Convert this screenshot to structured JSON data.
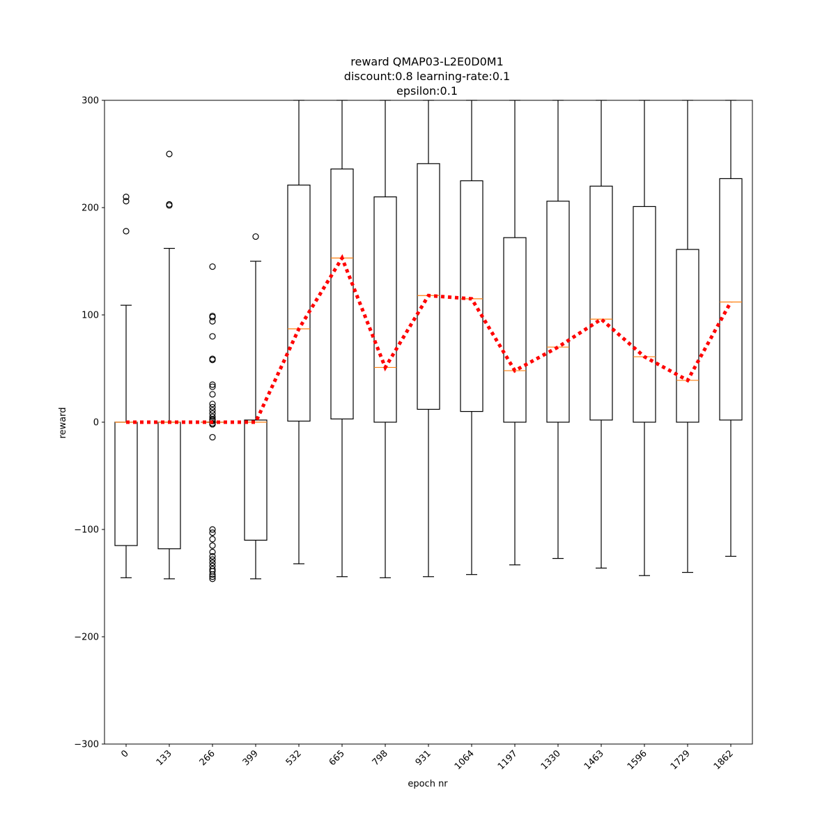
{
  "chart_data": {
    "type": "box",
    "title_lines": [
      "reward QMAP03-L2E0D0M1",
      "discount:0.8 learning-rate:0.1",
      "epsilon:0.1"
    ],
    "xlabel": "epoch nr",
    "ylabel": "reward",
    "ylim": [
      -300,
      300
    ],
    "y_ticks": [
      -300,
      -200,
      -100,
      0,
      100,
      200,
      300
    ],
    "y_tick_labels": [
      "−300",
      "−200",
      "−100",
      "0",
      "100",
      "200",
      "300"
    ],
    "categories": [
      "0",
      "133",
      "266",
      "399",
      "532",
      "665",
      "798",
      "931",
      "1064",
      "1197",
      "1330",
      "1463",
      "1596",
      "1729",
      "1862"
    ],
    "boxes": [
      {
        "q1": -115,
        "median": 0,
        "q3": 0,
        "whisker_low": -145,
        "whisker_high": 109,
        "fliers": [
          210,
          206,
          178
        ]
      },
      {
        "q1": -118,
        "median": 0,
        "q3": 0,
        "whisker_low": -146,
        "whisker_high": 162,
        "fliers": [
          250,
          203,
          202
        ]
      },
      {
        "q1": 0,
        "median": 0,
        "q3": 0,
        "whisker_low": 0,
        "whisker_high": 0,
        "fliers": [
          145,
          99,
          98,
          94,
          80,
          59,
          58,
          35,
          33,
          26,
          17,
          14,
          11,
          8,
          5,
          3,
          2,
          1,
          -1,
          -2,
          -14,
          -100,
          -103,
          -109,
          -115,
          -121,
          -125,
          -128,
          -131,
          -134,
          -137,
          -139,
          -142,
          -144,
          -146
        ]
      },
      {
        "q1": -110,
        "median": 0,
        "q3": 2,
        "whisker_low": -146,
        "whisker_high": 150,
        "fliers": [
          173
        ]
      },
      {
        "q1": 1,
        "median": 87,
        "q3": 221,
        "whisker_low": -132,
        "whisker_high": 300,
        "fliers": []
      },
      {
        "q1": 3,
        "median": 153,
        "q3": 236,
        "whisker_low": -144,
        "whisker_high": 300,
        "fliers": []
      },
      {
        "q1": 0,
        "median": 51,
        "q3": 210,
        "whisker_low": -145,
        "whisker_high": 300,
        "fliers": []
      },
      {
        "q1": 12,
        "median": 118,
        "q3": 241,
        "whisker_low": -144,
        "whisker_high": 300,
        "fliers": []
      },
      {
        "q1": 10,
        "median": 115,
        "q3": 225,
        "whisker_low": -142,
        "whisker_high": 300,
        "fliers": []
      },
      {
        "q1": 0,
        "median": 48,
        "q3": 172,
        "whisker_low": -133,
        "whisker_high": 300,
        "fliers": []
      },
      {
        "q1": 0,
        "median": 70,
        "q3": 206,
        "whisker_low": -127,
        "whisker_high": 300,
        "fliers": []
      },
      {
        "q1": 2,
        "median": 96,
        "q3": 220,
        "whisker_low": -136,
        "whisker_high": 300,
        "fliers": []
      },
      {
        "q1": 0,
        "median": 61,
        "q3": 201,
        "whisker_low": -143,
        "whisker_high": 300,
        "fliers": []
      },
      {
        "q1": 0,
        "median": 39,
        "q3": 161,
        "whisker_low": -140,
        "whisker_high": 300,
        "fliers": []
      },
      {
        "q1": 2,
        "median": 112,
        "q3": 227,
        "whisker_low": -125,
        "whisker_high": 300,
        "fliers": []
      }
    ],
    "median_line": {
      "values": [
        0,
        0,
        0,
        0,
        87,
        153,
        51,
        118,
        115,
        48,
        70,
        96,
        61,
        39,
        112
      ],
      "color": "#ff0000",
      "style": "dotted"
    },
    "box_color": "#000000",
    "median_color": "#ff7f0e",
    "grid": false
  }
}
